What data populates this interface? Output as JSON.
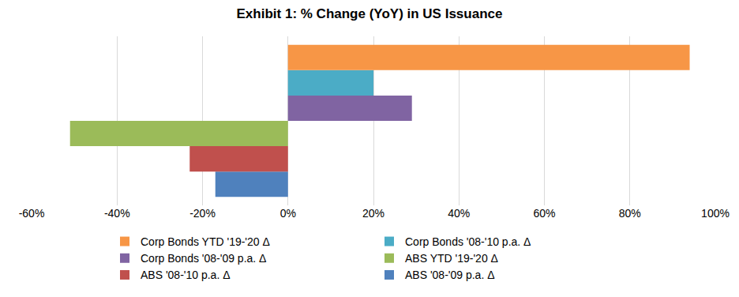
{
  "chart_data": {
    "type": "bar",
    "title": "Exhibit 1: % Change (YoY) in US Issuance",
    "orientation": "horizontal",
    "categories": [
      null
    ],
    "series": [
      {
        "name": "Corp Bonds YTD '19-'20 Δ",
        "color": "#F79646",
        "values": [
          94
        ]
      },
      {
        "name": "Corp Bonds '08-'10 p.a. Δ",
        "color": "#4BACC6",
        "values": [
          20
        ]
      },
      {
        "name": "Corp Bonds '08-'09 p.a. Δ",
        "color": "#8064A2",
        "values": [
          29
        ]
      },
      {
        "name": "ABS YTD '19-'20 Δ",
        "color": "#9BBB59",
        "values": [
          -51
        ]
      },
      {
        "name": "ABS '08-'10 p.a. Δ",
        "color": "#C0504D",
        "values": [
          -23
        ]
      },
      {
        "name": "ABS '08-'09 p.a. Δ",
        "color": "#4F81BD",
        "values": [
          -17
        ]
      }
    ],
    "xlim": [
      -60,
      100
    ],
    "xticks": [
      {
        "value": -60,
        "label": "-60%"
      },
      {
        "value": -40,
        "label": "-40%"
      },
      {
        "value": -20,
        "label": "-20%"
      },
      {
        "value": 0,
        "label": "0%"
      },
      {
        "value": 20,
        "label": "20%"
      },
      {
        "value": 40,
        "label": "40%"
      },
      {
        "value": 60,
        "label": "60%"
      },
      {
        "value": 80,
        "label": "80%"
      },
      {
        "value": 100,
        "label": "100%"
      }
    ],
    "grid": true,
    "legend": "bottom",
    "tick_labels": "x"
  }
}
